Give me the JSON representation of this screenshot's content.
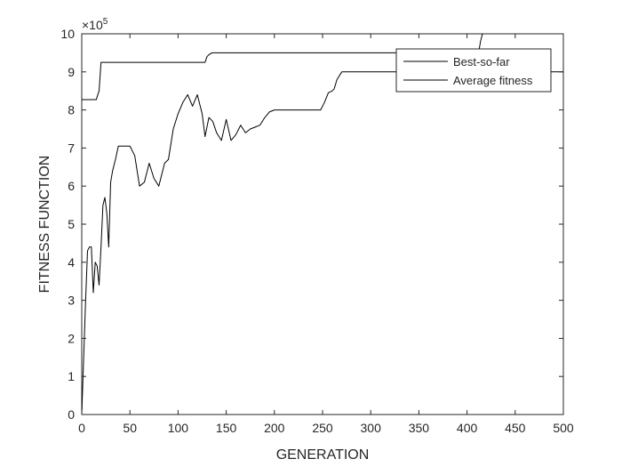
{
  "chart_data": {
    "type": "line",
    "title": "",
    "xlabel": "GENERATION",
    "ylabel": "FITNESS FUNCTION",
    "exponent_label": "×10",
    "exponent_power": "5",
    "xlim": [
      0,
      500
    ],
    "ylim": [
      0,
      10
    ],
    "xticks": [
      0,
      50,
      100,
      150,
      200,
      250,
      300,
      350,
      400,
      450,
      500
    ],
    "yticks": [
      0,
      1,
      2,
      3,
      4,
      5,
      6,
      7,
      8,
      9,
      10
    ],
    "grid": false,
    "legend_position": "top-right",
    "series": [
      {
        "name": "Best-so-far",
        "color": "#000000",
        "x": [
          0,
          15,
          18,
          20,
          25,
          50,
          100,
          128,
          130,
          132,
          135,
          200,
          250,
          300,
          350,
          400,
          412,
          414,
          416
        ],
        "y": [
          8.27,
          8.27,
          8.5,
          9.25,
          9.25,
          9.25,
          9.25,
          9.25,
          9.4,
          9.45,
          9.5,
          9.5,
          9.5,
          9.5,
          9.5,
          9.5,
          9.5,
          9.8,
          10.0
        ]
      },
      {
        "name": "Average fitness",
        "color": "#000000",
        "x": [
          0,
          2,
          4,
          6,
          8,
          10,
          12,
          14,
          16,
          18,
          20,
          22,
          24,
          26,
          28,
          30,
          32,
          35,
          38,
          40,
          45,
          50,
          55,
          60,
          65,
          70,
          75,
          80,
          83,
          86,
          90,
          95,
          100,
          105,
          110,
          115,
          120,
          125,
          128,
          132,
          136,
          140,
          145,
          150,
          155,
          160,
          165,
          170,
          175,
          180,
          185,
          190,
          195,
          200,
          210,
          220,
          230,
          240,
          248,
          252,
          256,
          260,
          262,
          265,
          270,
          280,
          300,
          350,
          400,
          450,
          500
        ],
        "y": [
          0.0,
          1.5,
          3.0,
          4.3,
          4.4,
          4.4,
          3.2,
          4.0,
          3.9,
          3.4,
          4.4,
          5.5,
          5.7,
          5.3,
          4.4,
          6.1,
          6.4,
          6.7,
          7.05,
          7.05,
          7.05,
          7.05,
          6.8,
          6.0,
          6.1,
          6.6,
          6.2,
          6.0,
          6.3,
          6.6,
          6.7,
          7.5,
          7.9,
          8.2,
          8.4,
          8.1,
          8.4,
          7.9,
          7.3,
          7.8,
          7.7,
          7.4,
          7.2,
          7.75,
          7.2,
          7.35,
          7.6,
          7.4,
          7.5,
          7.55,
          7.6,
          7.8,
          7.95,
          8.0,
          8.0,
          8.0,
          8.0,
          8.0,
          8.0,
          8.2,
          8.45,
          8.5,
          8.55,
          8.8,
          9.0,
          9.0,
          9.0,
          9.0,
          9.0,
          9.0,
          9.0
        ]
      }
    ]
  }
}
